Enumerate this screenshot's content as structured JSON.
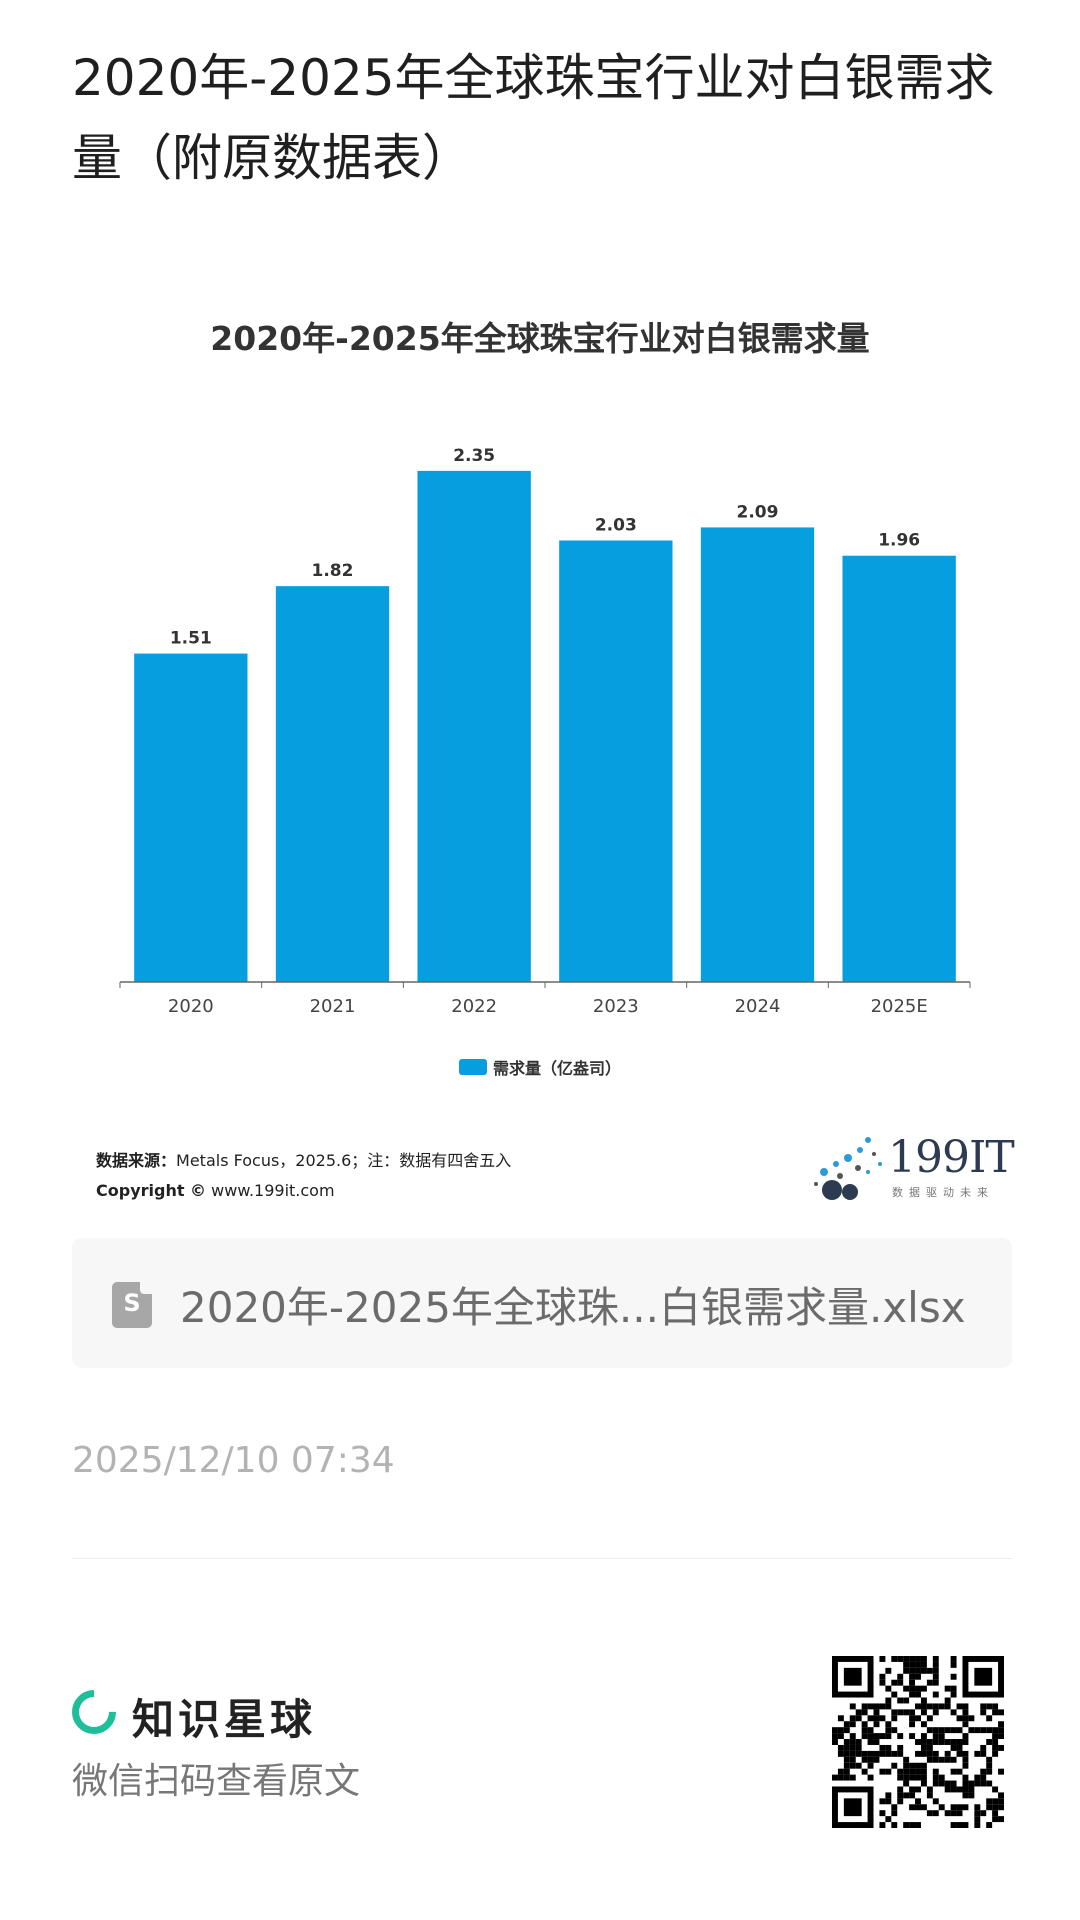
{
  "page": {
    "title": "2020年-2025年全球珠宝行业对白银需求量（附原数据表）",
    "file_name": "2020年-2025年全球珠...白银需求量.xlsx",
    "file_icon_glyph": "S",
    "timestamp": "2025/12/10 07:34",
    "brand_name": "知识星球",
    "scan_hint": "微信扫码查看原文",
    "logo_text": "199IT",
    "logo_sub": "数据驱动未来"
  },
  "source": {
    "label": "数据来源：",
    "text": "Metals Focus，2025.6；注：数据有四舍五入",
    "copyright_label": "Copyright ©",
    "copyright_text": " www.199it.com"
  },
  "chart_data": {
    "type": "bar",
    "title": "2020年-2025年全球珠宝行业对白银需求量",
    "categories": [
      "2020",
      "2021",
      "2022",
      "2023",
      "2024",
      "2025E"
    ],
    "series": [
      {
        "name": "需求量（亿盎司）",
        "values": [
          1.51,
          1.82,
          2.35,
          2.03,
          2.09,
          1.96
        ],
        "color": "#079ee0"
      }
    ],
    "data_labels": [
      "1.51",
      "1.82",
      "2.35",
      "2.03",
      "2.09",
      "1.96"
    ],
    "ylim": [
      0,
      2.4
    ],
    "grid": false,
    "legend": "bottom-center",
    "colors": {
      "bar": "#079ee0",
      "axis": "#666666",
      "label": "#333333"
    }
  },
  "colors": {
    "accent": "#1fbe9b",
    "muted_text": "#b3b3b3"
  }
}
